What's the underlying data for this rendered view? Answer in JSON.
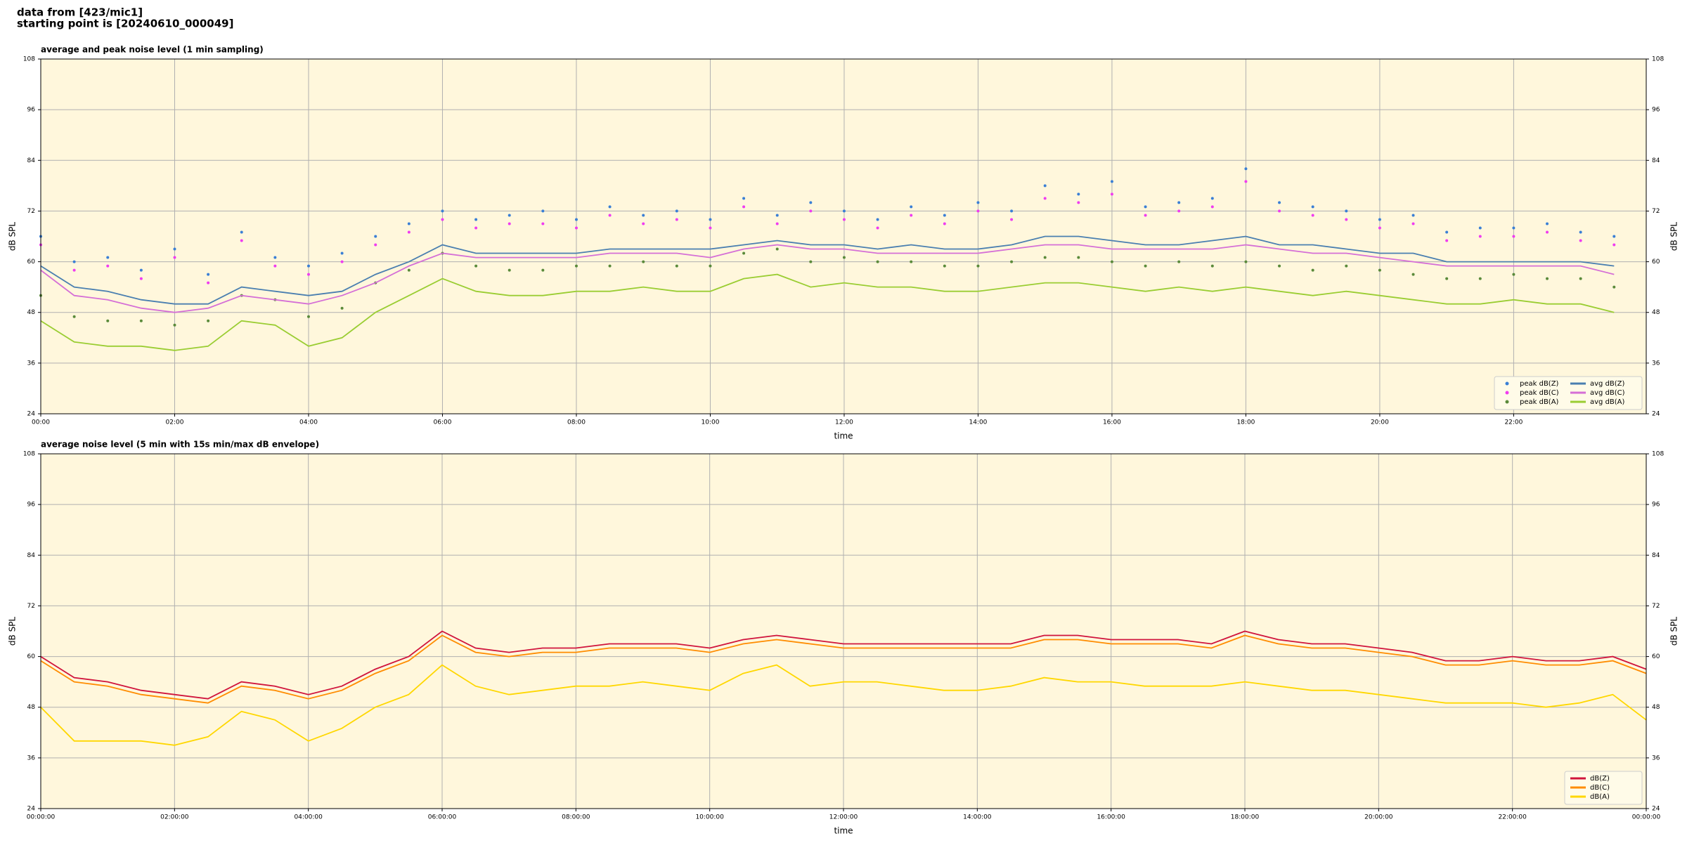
{
  "header": [
    "data from [423/mic1]",
    "starting point is [20240610_000049]"
  ],
  "chart_data": [
    {
      "type": "line",
      "title": "average and peak noise level (1 min sampling)",
      "xlabel": "time",
      "ylabel": "dB SPL",
      "xlim": [
        0,
        23.98
      ],
      "ylim": [
        24,
        108
      ],
      "grid": true,
      "legend": "lower right",
      "legend_columns": 2,
      "xticks": [
        {
          "value": 0,
          "label": "00:00"
        },
        {
          "value": 2,
          "label": "02:00"
        },
        {
          "value": 4,
          "label": "04:00"
        },
        {
          "value": 6,
          "label": "06:00"
        },
        {
          "value": 8,
          "label": "08:00"
        },
        {
          "value": 10,
          "label": "10:00"
        },
        {
          "value": 12,
          "label": "12:00"
        },
        {
          "value": 14,
          "label": "14:00"
        },
        {
          "value": 16,
          "label": "16:00"
        },
        {
          "value": 18,
          "label": "18:00"
        },
        {
          "value": 20,
          "label": "20:00"
        },
        {
          "value": 22,
          "label": "22:00"
        }
      ],
      "yticks": [
        24,
        36,
        48,
        60,
        72,
        84,
        96,
        108
      ],
      "x": [
        0,
        0.5,
        1,
        1.5,
        2,
        2.5,
        3,
        3.5,
        4,
        4.5,
        5,
        5.5,
        6,
        6.5,
        7,
        7.5,
        8,
        8.5,
        9,
        9.5,
        10,
        10.5,
        11,
        11.5,
        12,
        12.5,
        13,
        13.5,
        14,
        14.5,
        15,
        15.5,
        16,
        16.5,
        17,
        17.5,
        18,
        18.5,
        19,
        19.5,
        20,
        20.5,
        21,
        21.5,
        22,
        22.5,
        23,
        23.5
      ],
      "series": [
        {
          "name": "peak dB(Z)",
          "mark": "point",
          "color": "#3a7fd5",
          "values": [
            66,
            60,
            61,
            58,
            63,
            57,
            67,
            61,
            59,
            62,
            66,
            69,
            72,
            70,
            71,
            72,
            70,
            73,
            71,
            72,
            70,
            75,
            71,
            74,
            72,
            70,
            73,
            71,
            74,
            72,
            78,
            76,
            79,
            73,
            74,
            75,
            82,
            74,
            73,
            72,
            70,
            71,
            67,
            68,
            68,
            69,
            67,
            66
          ]
        },
        {
          "name": "peak dB(C)",
          "mark": "point",
          "color": "#f03cf0",
          "values": [
            64,
            58,
            59,
            56,
            61,
            55,
            65,
            59,
            57,
            60,
            64,
            67,
            70,
            68,
            69,
            69,
            68,
            71,
            69,
            70,
            68,
            73,
            69,
            72,
            70,
            68,
            71,
            69,
            72,
            70,
            75,
            74,
            76,
            71,
            72,
            73,
            79,
            72,
            71,
            70,
            68,
            69,
            65,
            66,
            66,
            67,
            65,
            64
          ]
        },
        {
          "name": "peak dB(A)",
          "mark": "point",
          "color": "#5a8a3a",
          "values": [
            52,
            47,
            46,
            46,
            45,
            46,
            52,
            51,
            47,
            49,
            55,
            58,
            62,
            59,
            58,
            58,
            59,
            59,
            60,
            59,
            59,
            62,
            63,
            60,
            61,
            60,
            60,
            59,
            59,
            60,
            61,
            61,
            60,
            59,
            60,
            59,
            60,
            59,
            58,
            59,
            58,
            57,
            56,
            56,
            57,
            56,
            56,
            54
          ]
        },
        {
          "name": "avg dB(Z)",
          "mark": "line",
          "color": "#4a7fb0",
          "values": [
            59,
            54,
            53,
            51,
            50,
            50,
            54,
            53,
            52,
            53,
            57,
            60,
            64,
            62,
            62,
            62,
            62,
            63,
            63,
            63,
            63,
            64,
            65,
            64,
            64,
            63,
            64,
            63,
            63,
            64,
            66,
            66,
            65,
            64,
            64,
            65,
            66,
            64,
            64,
            63,
            62,
            62,
            60,
            60,
            60,
            60,
            60,
            59
          ]
        },
        {
          "name": "avg dB(C)",
          "mark": "line",
          "color": "#d56fd6",
          "values": [
            58,
            52,
            51,
            49,
            48,
            49,
            52,
            51,
            50,
            52,
            55,
            59,
            62,
            61,
            61,
            61,
            61,
            62,
            62,
            62,
            61,
            63,
            64,
            63,
            63,
            62,
            62,
            62,
            62,
            63,
            64,
            64,
            63,
            63,
            63,
            63,
            64,
            63,
            62,
            62,
            61,
            60,
            59,
            59,
            59,
            59,
            59,
            57
          ]
        },
        {
          "name": "avg dB(A)",
          "mark": "line",
          "color": "#9acd32",
          "values": [
            46,
            41,
            40,
            40,
            39,
            40,
            46,
            45,
            40,
            42,
            48,
            52,
            56,
            53,
            52,
            52,
            53,
            53,
            54,
            53,
            53,
            56,
            57,
            54,
            55,
            54,
            54,
            53,
            53,
            54,
            55,
            55,
            54,
            53,
            54,
            53,
            54,
            53,
            52,
            53,
            52,
            51,
            50,
            50,
            51,
            50,
            50,
            48
          ]
        }
      ]
    },
    {
      "type": "line",
      "title": "average noise level (5 min with 15s min/max dB envelope)",
      "xlabel": "time",
      "ylabel": "dB SPL",
      "xlim": [
        0,
        24
      ],
      "ylim": [
        24,
        108
      ],
      "grid": true,
      "legend": "lower right",
      "legend_columns": 1,
      "xticks": [
        {
          "value": 0,
          "label": "00:00:00"
        },
        {
          "value": 2,
          "label": "02:00:00"
        },
        {
          "value": 4,
          "label": "04:00:00"
        },
        {
          "value": 6,
          "label": "06:00:00"
        },
        {
          "value": 8,
          "label": "08:00:00"
        },
        {
          "value": 10,
          "label": "10:00:00"
        },
        {
          "value": 12,
          "label": "12:00:00"
        },
        {
          "value": 14,
          "label": "14:00:00"
        },
        {
          "value": 16,
          "label": "16:00:00"
        },
        {
          "value": 18,
          "label": "18:00:00"
        },
        {
          "value": 20,
          "label": "20:00:00"
        },
        {
          "value": 22,
          "label": "22:00:00"
        },
        {
          "value": 24,
          "label": "00:00:00"
        }
      ],
      "yticks": [
        24,
        36,
        48,
        60,
        72,
        84,
        96,
        108
      ],
      "x": [
        0,
        0.5,
        1,
        1.5,
        2,
        2.5,
        3,
        3.5,
        4,
        4.5,
        5,
        5.5,
        6,
        6.5,
        7,
        7.5,
        8,
        8.5,
        9,
        9.5,
        10,
        10.5,
        11,
        11.5,
        12,
        12.5,
        13,
        13.5,
        14,
        14.5,
        15,
        15.5,
        16,
        16.5,
        17,
        17.5,
        18,
        18.5,
        19,
        19.5,
        20,
        20.5,
        21,
        21.5,
        22,
        22.5,
        23,
        23.5,
        24
      ],
      "series": [
        {
          "name": "dB(Z)",
          "mark": "line",
          "color": "#d0143c",
          "values": [
            60,
            55,
            54,
            52,
            51,
            50,
            54,
            53,
            51,
            53,
            57,
            60,
            66,
            62,
            61,
            62,
            62,
            63,
            63,
            63,
            62,
            64,
            65,
            64,
            63,
            63,
            63,
            63,
            63,
            63,
            65,
            65,
            64,
            64,
            64,
            63,
            66,
            64,
            63,
            63,
            62,
            61,
            59,
            59,
            60,
            59,
            59,
            60,
            57
          ]
        },
        {
          "name": "dB(C)",
          "mark": "line",
          "color": "#ff8c00",
          "values": [
            59,
            54,
            53,
            51,
            50,
            49,
            53,
            52,
            50,
            52,
            56,
            59,
            65,
            61,
            60,
            61,
            61,
            62,
            62,
            62,
            61,
            63,
            64,
            63,
            62,
            62,
            62,
            62,
            62,
            62,
            64,
            64,
            63,
            63,
            63,
            62,
            65,
            63,
            62,
            62,
            61,
            60,
            58,
            58,
            59,
            58,
            58,
            59,
            56
          ]
        },
        {
          "name": "dB(A)",
          "mark": "line",
          "color": "#ffd700",
          "values": [
            48,
            40,
            40,
            40,
            39,
            41,
            47,
            45,
            40,
            43,
            48,
            51,
            58,
            53,
            51,
            52,
            53,
            53,
            54,
            53,
            52,
            56,
            58,
            53,
            54,
            54,
            53,
            52,
            52,
            53,
            55,
            54,
            54,
            53,
            53,
            53,
            54,
            53,
            52,
            52,
            51,
            50,
            49,
            49,
            49,
            48,
            49,
            51,
            45
          ]
        }
      ]
    }
  ]
}
